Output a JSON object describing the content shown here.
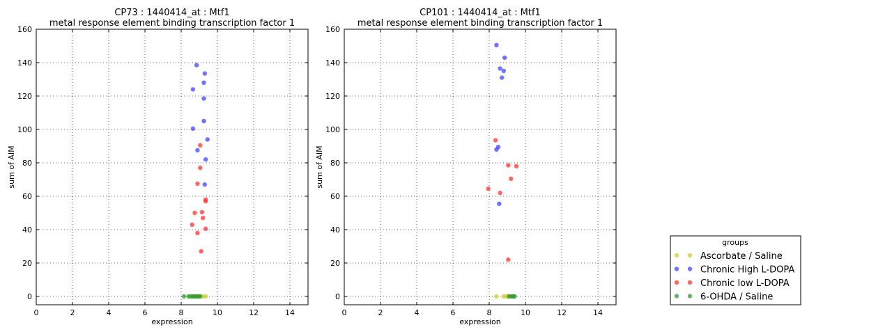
{
  "colors": {
    "Ascorbate / Saline": "#cccc33",
    "Chronic High L-DOPA": "#4444ff",
    "Chronic low L-DOPA": "#ff3333",
    "6-OHDA / Saline": "#339933"
  },
  "legend": {
    "title": "groups",
    "entries": [
      "Ascorbate / Saline",
      "Chronic High L-DOPA",
      "Chronic low L-DOPA",
      "6-OHDA / Saline"
    ]
  },
  "chart_data": [
    {
      "type": "scatter",
      "title": "CP73 : 1440414_at : Mtf1",
      "subtitle": "metal response element binding transcription factor 1",
      "xlabel": "expression",
      "ylabel": "sum of AIM",
      "xlim": [
        0,
        15
      ],
      "ylim": [
        -5,
        160
      ],
      "xticks": [
        "0",
        "2",
        "4",
        "6",
        "8",
        "10",
        "12",
        "14"
      ],
      "yticks": [
        "0",
        "20",
        "40",
        "60",
        "80",
        "100",
        "120",
        "140",
        "160"
      ],
      "grid": true,
      "series": [
        {
          "name": "Ascorbate / Saline",
          "x": [
            8.5,
            8.7,
            8.9,
            9.0,
            9.2,
            9.35
          ],
          "y": [
            0,
            0,
            0,
            0,
            0,
            0
          ]
        },
        {
          "name": "Chronic High L-DOPA",
          "x": [
            8.85,
            9.3,
            9.25,
            8.65,
            9.25,
            9.25,
            8.65,
            9.45,
            8.9,
            9.35,
            9.3
          ],
          "y": [
            138.5,
            133.5,
            128,
            124,
            118.5,
            105,
            100.5,
            94,
            87.5,
            82,
            67
          ]
        },
        {
          "name": "Chronic low L-DOPA",
          "x": [
            9.05,
            9.05,
            8.9,
            9.35,
            9.35,
            8.75,
            9.15,
            9.2,
            8.6,
            9.35,
            8.9,
            9.1
          ],
          "y": [
            90.5,
            77,
            67.5,
            58,
            57,
            50,
            50.5,
            47,
            43,
            40.5,
            38,
            27
          ]
        },
        {
          "name": "6-OHDA / Saline",
          "x": [
            8.15,
            8.4,
            8.55,
            8.65,
            8.75,
            8.85,
            8.95,
            9.05
          ],
          "y": [
            0,
            0,
            0,
            0,
            0,
            0,
            0,
            0
          ]
        }
      ]
    },
    {
      "type": "scatter",
      "title": "CP101 : 1440414_at : Mtf1",
      "subtitle": "metal response element binding transcription factor 1",
      "xlabel": "expression",
      "ylabel": "sum of AIM",
      "xlim": [
        0,
        15
      ],
      "ylim": [
        -5,
        160
      ],
      "xticks": [
        "0",
        "2",
        "4",
        "6",
        "8",
        "10",
        "12",
        "14"
      ],
      "yticks": [
        "0",
        "20",
        "40",
        "60",
        "80",
        "100",
        "120",
        "140",
        "160"
      ],
      "grid": true,
      "series": [
        {
          "name": "Ascorbate / Saline",
          "x": [
            8.4,
            8.8,
            8.95,
            9.05
          ],
          "y": [
            0,
            0,
            0,
            0
          ]
        },
        {
          "name": "Chronic High L-DOPA",
          "x": [
            8.4,
            8.85,
            8.6,
            8.8,
            8.7,
            8.5,
            8.4,
            8.55
          ],
          "y": [
            150.5,
            143,
            136.5,
            135,
            131,
            89.5,
            88,
            55.5
          ]
        },
        {
          "name": "Chronic low L-DOPA",
          "x": [
            8.35,
            9.05,
            9.5,
            9.2,
            7.95,
            8.6,
            9.05
          ],
          "y": [
            93.5,
            78.5,
            78,
            70.5,
            64.5,
            62,
            22
          ]
        },
        {
          "name": "6-OHDA / Saline",
          "x": [
            9.1,
            9.2,
            9.3,
            9.35,
            9.4
          ],
          "y": [
            0,
            0,
            0,
            0,
            0
          ]
        }
      ]
    }
  ]
}
